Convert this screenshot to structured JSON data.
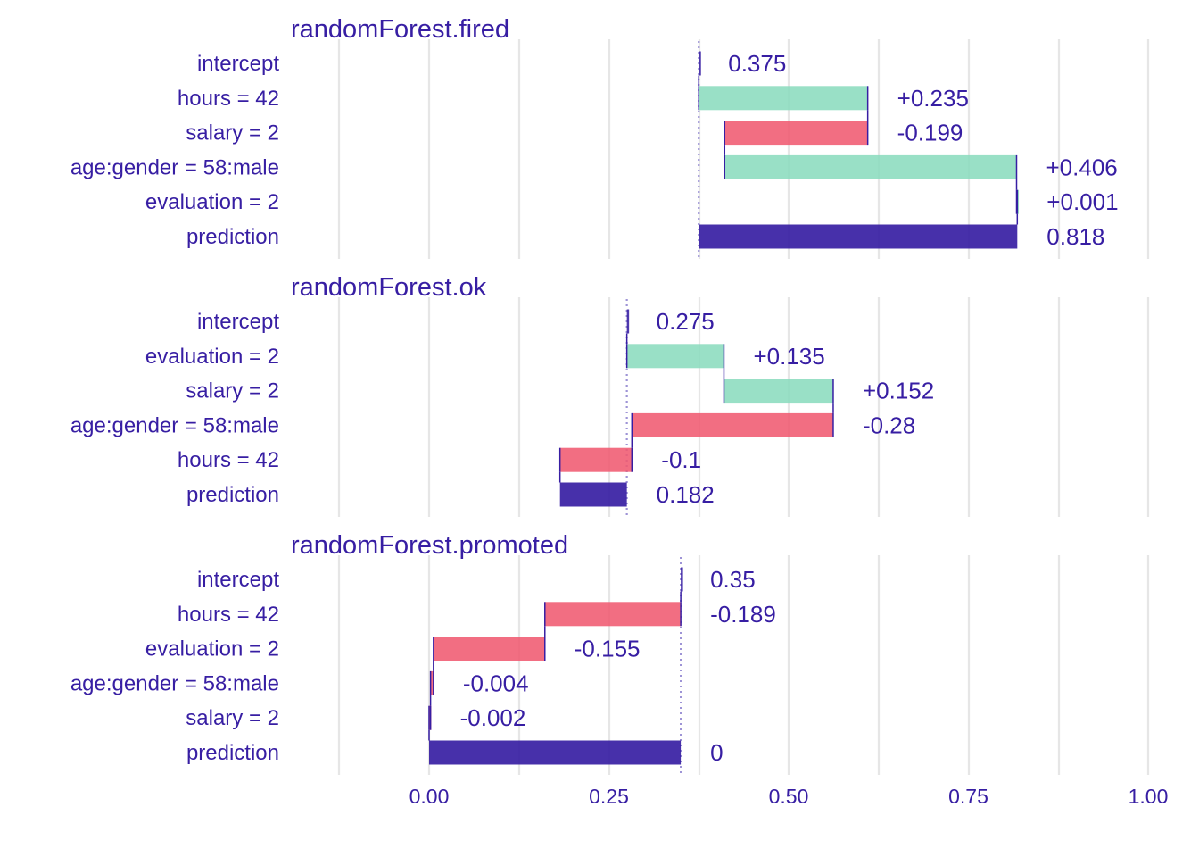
{
  "chart_data": {
    "type": "bar",
    "subtype": "waterfall / break-down",
    "x_ticks": [
      "0.00",
      "0.25",
      "0.50",
      "0.75",
      "1.00"
    ],
    "x_tick_values": [
      0,
      0.25,
      0.5,
      0.75,
      1.0
    ],
    "xlim": [
      -0.125,
      1.0
    ],
    "grid": true,
    "colors": {
      "positive": "#8bdcbe",
      "negative": "#f05a71",
      "prediction": "#371ea3",
      "text": "#371ea3",
      "connector": "#371ea3",
      "baseline_dotted": "#9e94d6",
      "grid": "#e6e6e6"
    },
    "panels": [
      {
        "title": "randomForest.fired",
        "intercept": 0.375,
        "rows": [
          {
            "label": "intercept",
            "value": 0.375,
            "display": "0.375",
            "kind": "intercept"
          },
          {
            "label": "hours = 42",
            "value": 0.235,
            "display": "+0.235",
            "kind": "contribution"
          },
          {
            "label": "salary = 2",
            "value": -0.199,
            "display": "-0.199",
            "kind": "contribution"
          },
          {
            "label": "age:gender = 58:male",
            "value": 0.406,
            "display": "+0.406",
            "kind": "contribution"
          },
          {
            "label": "evaluation = 2",
            "value": 0.001,
            "display": "+0.001",
            "kind": "contribution"
          },
          {
            "label": "prediction",
            "value": 0.818,
            "display": "0.818",
            "kind": "prediction"
          }
        ]
      },
      {
        "title": "randomForest.ok",
        "intercept": 0.275,
        "rows": [
          {
            "label": "intercept",
            "value": 0.275,
            "display": "0.275",
            "kind": "intercept"
          },
          {
            "label": "evaluation = 2",
            "value": 0.135,
            "display": "+0.135",
            "kind": "contribution"
          },
          {
            "label": "salary = 2",
            "value": 0.152,
            "display": "+0.152",
            "kind": "contribution"
          },
          {
            "label": "age:gender = 58:male",
            "value": -0.28,
            "display": "-0.28",
            "kind": "contribution"
          },
          {
            "label": "hours = 42",
            "value": -0.1,
            "display": "-0.1",
            "kind": "contribution"
          },
          {
            "label": "prediction",
            "value": 0.182,
            "display": "0.182",
            "kind": "prediction"
          }
        ]
      },
      {
        "title": "randomForest.promoted",
        "intercept": 0.35,
        "rows": [
          {
            "label": "intercept",
            "value": 0.35,
            "display": "0.35",
            "kind": "intercept"
          },
          {
            "label": "hours = 42",
            "value": -0.189,
            "display": "-0.189",
            "kind": "contribution"
          },
          {
            "label": "evaluation = 2",
            "value": -0.155,
            "display": "-0.155",
            "kind": "contribution"
          },
          {
            "label": "age:gender = 58:male",
            "value": -0.004,
            "display": "-0.004",
            "kind": "contribution"
          },
          {
            "label": "salary = 2",
            "value": -0.002,
            "display": "-0.002",
            "kind": "contribution"
          },
          {
            "label": "prediction",
            "value": 0,
            "display": "0",
            "kind": "prediction"
          }
        ]
      }
    ]
  }
}
